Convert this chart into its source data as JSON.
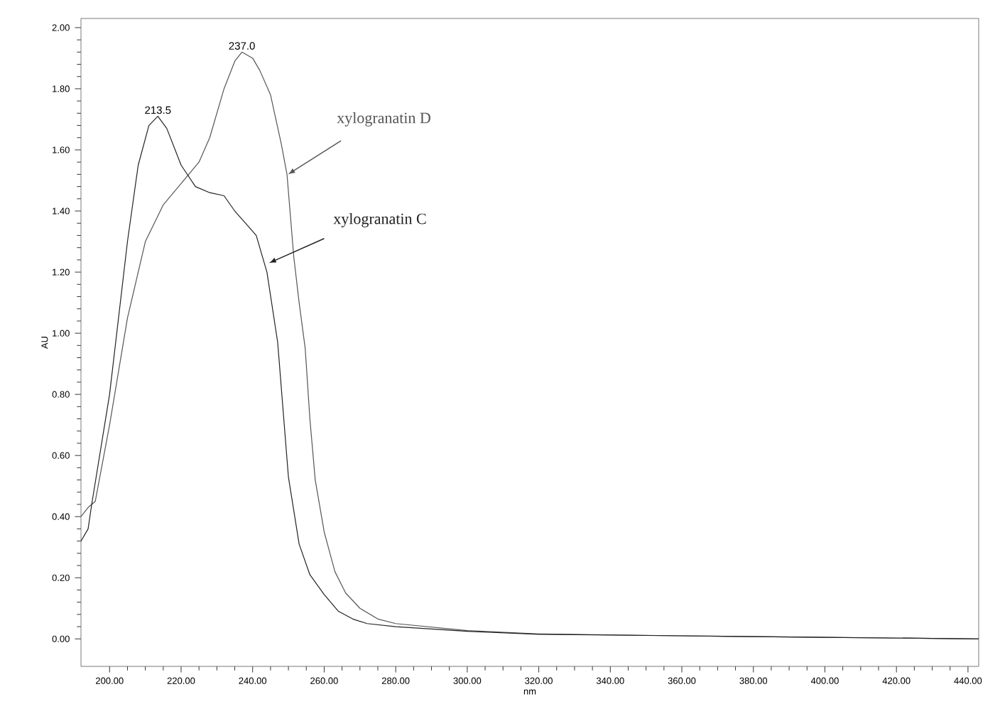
{
  "chart_data": {
    "type": "line",
    "xlabel": "nm",
    "ylabel": "AU",
    "xlim": [
      192,
      443
    ],
    "ylim": [
      -0.09,
      2.03
    ],
    "xticks": [
      {
        "value": 200,
        "label": "200.00"
      },
      {
        "value": 220,
        "label": "220.00"
      },
      {
        "value": 240,
        "label": "240.00"
      },
      {
        "value": 260,
        "label": "260.00"
      },
      {
        "value": 280,
        "label": "280.00"
      },
      {
        "value": 300,
        "label": "300.00"
      },
      {
        "value": 320,
        "label": "320.00"
      },
      {
        "value": 340,
        "label": "340.00"
      },
      {
        "value": 360,
        "label": "360.00"
      },
      {
        "value": 380,
        "label": "380.00"
      },
      {
        "value": 400,
        "label": "400.00"
      },
      {
        "value": 420,
        "label": "420.00"
      },
      {
        "value": 440,
        "label": "440.00"
      }
    ],
    "yticks": [
      {
        "value": 0,
        "label": "0.00"
      },
      {
        "value": 0.2,
        "label": "0.20"
      },
      {
        "value": 0.4,
        "label": "0.40"
      },
      {
        "value": 0.6,
        "label": "0.60"
      },
      {
        "value": 0.8,
        "label": "0.80"
      },
      {
        "value": 1.0,
        "label": "1.00"
      },
      {
        "value": 1.2,
        "label": "1.20"
      },
      {
        "value": 1.4,
        "label": "1.40"
      },
      {
        "value": 1.6,
        "label": "1.60"
      },
      {
        "value": 1.8,
        "label": "1.80"
      },
      {
        "value": 2.0,
        "label": "2.00"
      }
    ],
    "grid": false,
    "legend": false,
    "marker": "none",
    "line_style": "solid",
    "series": [
      {
        "name": "xylogranatin D",
        "color": "#555555",
        "x": [
          192,
          194,
          196,
          200,
          205,
          210,
          215,
          220,
          225,
          228,
          232,
          235,
          237,
          240,
          242,
          245,
          248,
          249.6,
          251.5,
          253,
          254.7,
          256,
          257.5,
          260,
          263,
          266,
          270,
          275,
          280,
          300,
          320,
          360,
          400,
          443
        ],
        "values": [
          0.4,
          0.43,
          0.45,
          0.7,
          1.05,
          1.3,
          1.42,
          1.49,
          1.56,
          1.64,
          1.8,
          1.89,
          1.92,
          1.9,
          1.86,
          1.78,
          1.62,
          1.52,
          1.25,
          1.1,
          0.95,
          0.72,
          0.52,
          0.35,
          0.22,
          0.15,
          0.1,
          0.065,
          0.05,
          0.027,
          0.016,
          0.01,
          0.005,
          0.0
        ]
      },
      {
        "name": "xylogranatin C",
        "color": "#222222",
        "x": [
          192,
          194,
          195,
          200,
          205,
          208,
          211,
          213.5,
          216,
          220,
          224,
          228,
          232,
          235,
          238,
          241,
          244,
          247,
          248.5,
          250,
          253,
          256,
          260,
          264,
          268,
          272,
          280,
          300,
          320,
          360,
          400,
          443
        ],
        "values": [
          0.32,
          0.36,
          0.44,
          0.8,
          1.3,
          1.55,
          1.68,
          1.71,
          1.67,
          1.55,
          1.48,
          1.46,
          1.45,
          1.4,
          1.36,
          1.32,
          1.2,
          0.97,
          0.75,
          0.53,
          0.31,
          0.21,
          0.145,
          0.09,
          0.065,
          0.05,
          0.04,
          0.025,
          0.015,
          0.01,
          0.005,
          0.0
        ]
      }
    ],
    "annotations": [
      {
        "text": "213.5",
        "x": 213.5,
        "y": 1.71
      },
      {
        "text": "237.0",
        "x": 237.0,
        "y": 1.92
      }
    ]
  }
}
